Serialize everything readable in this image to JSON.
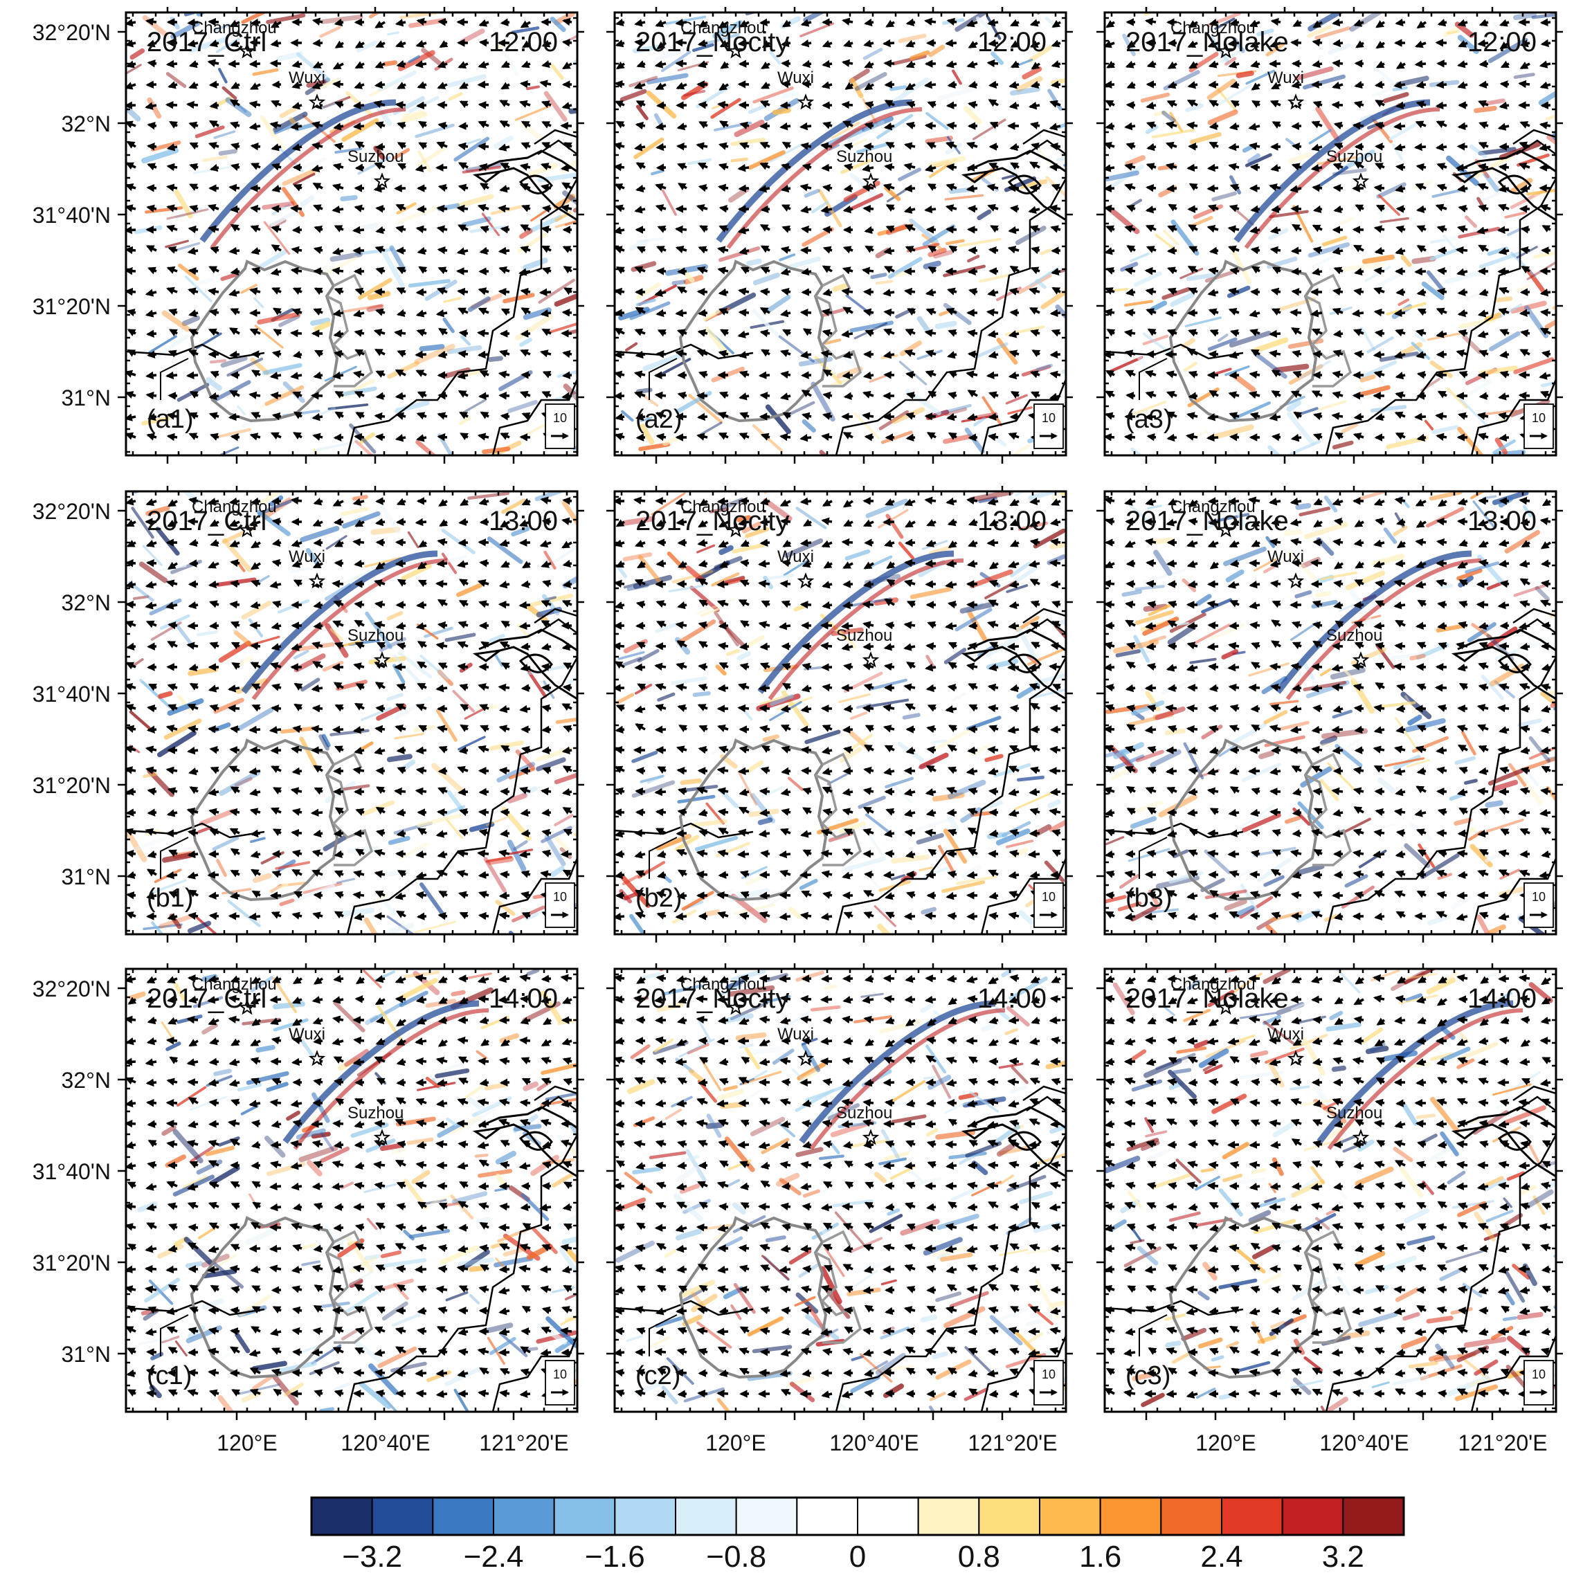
{
  "figure": {
    "rows": [
      {
        "time": "12:00",
        "panels": [
          {
            "scenario": "2017_Ctrl",
            "label": "(a1)"
          },
          {
            "scenario": "2017_Nocity",
            "label": "(a2)"
          },
          {
            "scenario": "2017_Nolake",
            "label": "(a3)"
          }
        ]
      },
      {
        "time": "13:00",
        "panels": [
          {
            "scenario": "2017_Ctrl",
            "label": "(b1)"
          },
          {
            "scenario": "2017_Nocity",
            "label": "(b2)"
          },
          {
            "scenario": "2017_Nolake",
            "label": "(b3)"
          }
        ]
      },
      {
        "time": "14:00",
        "panels": [
          {
            "scenario": "2017_Ctrl",
            "label": "(c1)"
          },
          {
            "scenario": "2017_Nocity",
            "label": "(c2)"
          },
          {
            "scenario": "2017_Nolake",
            "label": "(c3)"
          }
        ]
      }
    ],
    "cities": [
      "Changzhou",
      "Wuxi",
      "Suzhou"
    ],
    "lat_ticks": [
      "32°20'N",
      "32°N",
      "31°40'N",
      "31°20'N",
      "31°N"
    ],
    "lon_ticks": [
      "120°E",
      "120°40'E",
      "121°20'E"
    ],
    "ref_vector_label": "10",
    "colorbar": {
      "tick_labels": [
        "−3.2",
        "−2.4",
        "−1.6",
        "−0.8",
        "0",
        "0.8",
        "1.6",
        "2.4",
        "3.2"
      ],
      "colors": [
        "#1b2f6b",
        "#234c9a",
        "#3a78c2",
        "#5b9bd5",
        "#86c0e8",
        "#b0daf3",
        "#d8eef9",
        "#eef7fc",
        "#ffffff",
        "#ffffff",
        "#fff3c4",
        "#fedd7f",
        "#fdbb4f",
        "#fb9532",
        "#f26a29",
        "#e03a24",
        "#c21f22",
        "#941a1c"
      ]
    }
  }
}
